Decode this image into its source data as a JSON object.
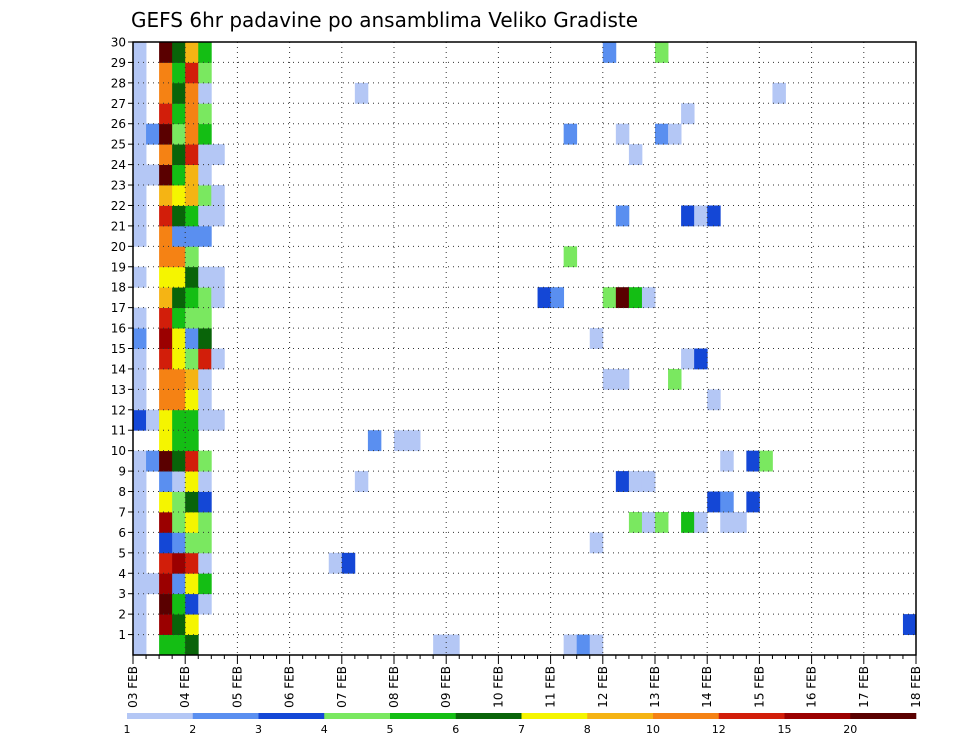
{
  "chart_data": {
    "type": "heatmap",
    "title": "GEFS 6hr padavine po ansamblima Veliko Gradiste",
    "x_tick_labels": [
      "03 FEB",
      "04 FEB",
      "05 FEB",
      "06 FEB",
      "07 FEB",
      "08 FEB",
      "09 FEB",
      "10 FEB",
      "11 FEB",
      "12 FEB",
      "13 FEB",
      "14 FEB",
      "15 FEB",
      "16 FEB",
      "17 FEB",
      "18 FEB"
    ],
    "y_tick_labels": [
      "1",
      "2",
      "3",
      "4",
      "5",
      "6",
      "7",
      "8",
      "9",
      "10",
      "11",
      "12",
      "13",
      "14",
      "15",
      "16",
      "17",
      "18",
      "19",
      "20",
      "21",
      "22",
      "23",
      "24",
      "25",
      "26",
      "27",
      "28",
      "29",
      "30"
    ],
    "x_range_days": [
      0,
      15
    ],
    "y_range": [
      0,
      30
    ],
    "time_step_hours": 6,
    "grid": "dotted",
    "colorbar": {
      "boundaries": [
        1,
        2,
        3,
        4,
        5,
        6,
        7,
        8,
        10,
        12,
        15,
        20
      ],
      "labels": [
        "1",
        "2",
        "3",
        "4",
        "5",
        "6",
        "7",
        "8",
        "10",
        "12",
        "15",
        "20"
      ],
      "colors": [
        "#b4c7f5",
        "#5a8ff0",
        "#1447d6",
        "#7ae860",
        "#14be14",
        "#096409",
        "#f5f500",
        "#f5b414",
        "#f58214",
        "#d21e0a",
        "#9b0000",
        "#5a0000"
      ]
    },
    "members": [
      {
        "m": 1,
        "cells": [
          [
            0,
            0
          ],
          [
            2,
            4
          ],
          [
            3,
            4
          ],
          [
            4,
            5
          ],
          [
            23,
            0
          ],
          [
            24,
            0
          ],
          [
            33,
            0
          ],
          [
            34,
            1
          ],
          [
            35,
            0
          ]
        ]
      },
      {
        "m": 2,
        "cells": [
          [
            0,
            0
          ],
          [
            2,
            10
          ],
          [
            3,
            5
          ],
          [
            4,
            6
          ],
          [
            59,
            2
          ]
        ]
      },
      {
        "m": 3,
        "cells": [
          [
            0,
            0
          ],
          [
            2,
            11
          ],
          [
            3,
            4
          ],
          [
            4,
            2
          ],
          [
            5,
            0
          ]
        ]
      },
      {
        "m": 4,
        "cells": [
          [
            0,
            0
          ],
          [
            1,
            0
          ],
          [
            2,
            10
          ],
          [
            3,
            1
          ],
          [
            4,
            6
          ],
          [
            5,
            4
          ]
        ]
      },
      {
        "m": 5,
        "cells": [
          [
            0,
            0
          ],
          [
            2,
            9
          ],
          [
            3,
            10
          ],
          [
            4,
            9
          ],
          [
            5,
            0
          ],
          [
            15,
            0
          ],
          [
            16,
            2
          ]
        ]
      },
      {
        "m": 6,
        "cells": [
          [
            0,
            0
          ],
          [
            2,
            2
          ],
          [
            3,
            1
          ],
          [
            4,
            3
          ],
          [
            5,
            3
          ],
          [
            35,
            0
          ]
        ]
      },
      {
        "m": 7,
        "cells": [
          [
            0,
            0
          ],
          [
            2,
            10
          ],
          [
            3,
            3
          ],
          [
            4,
            6
          ],
          [
            5,
            3
          ],
          [
            38,
            3
          ],
          [
            39,
            0
          ],
          [
            40,
            3
          ],
          [
            42,
            4
          ],
          [
            43,
            0
          ],
          [
            45,
            0
          ],
          [
            46,
            0
          ]
        ]
      },
      {
        "m": 8,
        "cells": [
          [
            0,
            0
          ],
          [
            2,
            6
          ],
          [
            3,
            3
          ],
          [
            4,
            5
          ],
          [
            5,
            2
          ],
          [
            44,
            2
          ],
          [
            45,
            1
          ],
          [
            47,
            2
          ]
        ]
      },
      {
        "m": 9,
        "cells": [
          [
            0,
            0
          ],
          [
            2,
            1
          ],
          [
            3,
            0
          ],
          [
            4,
            6
          ],
          [
            5,
            0
          ],
          [
            17,
            0
          ],
          [
            37,
            2
          ],
          [
            38,
            0
          ],
          [
            39,
            0
          ]
        ]
      },
      {
        "m": 10,
        "cells": [
          [
            0,
            0
          ],
          [
            1,
            1
          ],
          [
            2,
            11
          ],
          [
            3,
            5
          ],
          [
            4,
            9
          ],
          [
            5,
            3
          ],
          [
            45,
            0
          ],
          [
            47,
            2
          ],
          [
            48,
            3
          ]
        ]
      },
      {
        "m": 11,
        "cells": [
          [
            2,
            6
          ],
          [
            3,
            4
          ],
          [
            4,
            4
          ],
          [
            18,
            1
          ],
          [
            20,
            0
          ],
          [
            21,
            0
          ]
        ]
      },
      {
        "m": 12,
        "cells": [
          [
            0,
            2
          ],
          [
            1,
            0
          ],
          [
            2,
            6
          ],
          [
            3,
            4
          ],
          [
            4,
            4
          ],
          [
            5,
            0
          ],
          [
            6,
            0
          ]
        ]
      },
      {
        "m": 13,
        "cells": [
          [
            0,
            0
          ],
          [
            2,
            8
          ],
          [
            3,
            8
          ],
          [
            4,
            6
          ],
          [
            5,
            0
          ],
          [
            44,
            0
          ]
        ]
      },
      {
        "m": 14,
        "cells": [
          [
            0,
            0
          ],
          [
            2,
            8
          ],
          [
            3,
            8
          ],
          [
            4,
            7
          ],
          [
            5,
            0
          ],
          [
            36,
            0
          ],
          [
            37,
            0
          ],
          [
            41,
            3
          ]
        ]
      },
      {
        "m": 15,
        "cells": [
          [
            0,
            0
          ],
          [
            2,
            9
          ],
          [
            3,
            6
          ],
          [
            4,
            3
          ],
          [
            5,
            9
          ],
          [
            6,
            0
          ],
          [
            42,
            0
          ],
          [
            43,
            2
          ]
        ]
      },
      {
        "m": 16,
        "cells": [
          [
            0,
            1
          ],
          [
            2,
            10
          ],
          [
            3,
            6
          ],
          [
            4,
            1
          ],
          [
            5,
            5
          ],
          [
            35,
            0
          ]
        ]
      },
      {
        "m": 17,
        "cells": [
          [
            0,
            0
          ],
          [
            2,
            9
          ],
          [
            3,
            4
          ],
          [
            4,
            3
          ],
          [
            5,
            3
          ]
        ]
      },
      {
        "m": 18,
        "cells": [
          [
            2,
            7
          ],
          [
            3,
            5
          ],
          [
            4,
            4
          ],
          [
            5,
            3
          ],
          [
            6,
            0
          ],
          [
            31,
            2
          ],
          [
            32,
            1
          ],
          [
            36,
            3
          ],
          [
            37,
            11
          ],
          [
            38,
            4
          ],
          [
            39,
            0
          ]
        ]
      },
      {
        "m": 19,
        "cells": [
          [
            0,
            0
          ],
          [
            2,
            6
          ],
          [
            3,
            6
          ],
          [
            4,
            5
          ],
          [
            5,
            0
          ],
          [
            6,
            0
          ]
        ]
      },
      {
        "m": 20,
        "cells": [
          [
            2,
            8
          ],
          [
            3,
            8
          ],
          [
            4,
            3
          ],
          [
            33,
            3
          ]
        ]
      },
      {
        "m": 21,
        "cells": [
          [
            0,
            0
          ],
          [
            2,
            8
          ],
          [
            3,
            1
          ],
          [
            4,
            1
          ],
          [
            5,
            1
          ]
        ]
      },
      {
        "m": 22,
        "cells": [
          [
            0,
            0
          ],
          [
            2,
            9
          ],
          [
            3,
            5
          ],
          [
            4,
            4
          ],
          [
            5,
            0
          ],
          [
            6,
            0
          ],
          [
            37,
            1
          ],
          [
            42,
            2
          ],
          [
            43,
            0
          ],
          [
            44,
            2
          ]
        ]
      },
      {
        "m": 23,
        "cells": [
          [
            0,
            0
          ],
          [
            2,
            7
          ],
          [
            3,
            6
          ],
          [
            4,
            7
          ],
          [
            5,
            3
          ],
          [
            6,
            0
          ]
        ]
      },
      {
        "m": 24,
        "cells": [
          [
            0,
            0
          ],
          [
            1,
            0
          ],
          [
            2,
            11
          ],
          [
            3,
            4
          ],
          [
            4,
            7
          ],
          [
            5,
            0
          ]
        ]
      },
      {
        "m": 25,
        "cells": [
          [
            0,
            0
          ],
          [
            2,
            8
          ],
          [
            3,
            5
          ],
          [
            4,
            9
          ],
          [
            5,
            0
          ],
          [
            6,
            0
          ],
          [
            38,
            0
          ]
        ]
      },
      {
        "m": 26,
        "cells": [
          [
            0,
            0
          ],
          [
            1,
            1
          ],
          [
            2,
            11
          ],
          [
            3,
            3
          ],
          [
            4,
            8
          ],
          [
            5,
            4
          ],
          [
            33,
            1
          ],
          [
            37,
            0
          ],
          [
            40,
            1
          ],
          [
            41,
            0
          ]
        ]
      },
      {
        "m": 27,
        "cells": [
          [
            0,
            0
          ],
          [
            2,
            9
          ],
          [
            3,
            4
          ],
          [
            4,
            8
          ],
          [
            5,
            3
          ],
          [
            42,
            0
          ]
        ]
      },
      {
        "m": 28,
        "cells": [
          [
            0,
            0
          ],
          [
            2,
            8
          ],
          [
            3,
            5
          ],
          [
            4,
            8
          ],
          [
            5,
            0
          ],
          [
            17,
            0
          ],
          [
            49,
            0
          ]
        ]
      },
      {
        "m": 29,
        "cells": [
          [
            0,
            0
          ],
          [
            2,
            8
          ],
          [
            3,
            4
          ],
          [
            4,
            9
          ],
          [
            5,
            3
          ]
        ]
      },
      {
        "m": 30,
        "cells": [
          [
            0,
            0
          ],
          [
            2,
            11
          ],
          [
            3,
            5
          ],
          [
            4,
            7
          ],
          [
            5,
            4
          ],
          [
            36,
            1
          ],
          [
            40,
            3
          ]
        ]
      }
    ]
  }
}
